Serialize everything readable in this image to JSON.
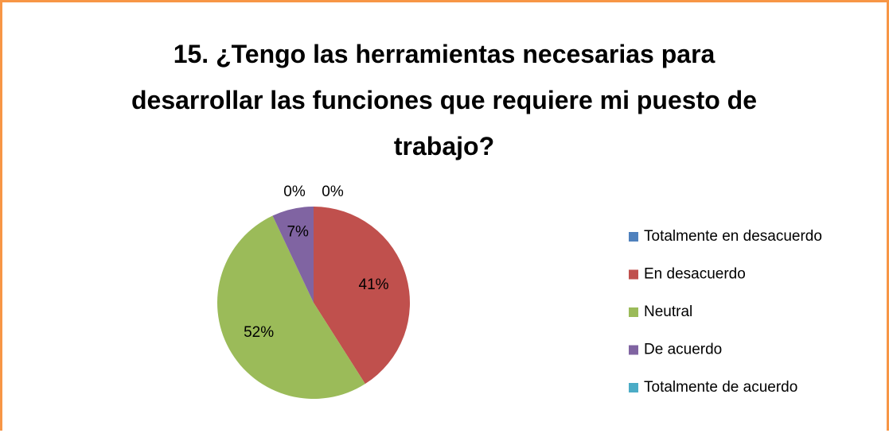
{
  "chart_data": {
    "type": "pie",
    "title": "15. ¿Tengo las herramientas necesarias para desarrollar las funciones que requiere mi puesto de trabajo?",
    "categories": [
      "Totalmente en desacuerdo",
      "En desacuerdo",
      "Neutral",
      "De acuerdo",
      "Totalmente de acuerdo"
    ],
    "values": [
      0,
      41,
      52,
      7,
      0
    ],
    "value_labels": [
      "0%",
      "41%",
      "52%",
      "7%",
      "0%"
    ],
    "colors": [
      "#4f81bd",
      "#c0504d",
      "#9bbb59",
      "#8064a2",
      "#4bacc6"
    ],
    "legend": "right"
  }
}
